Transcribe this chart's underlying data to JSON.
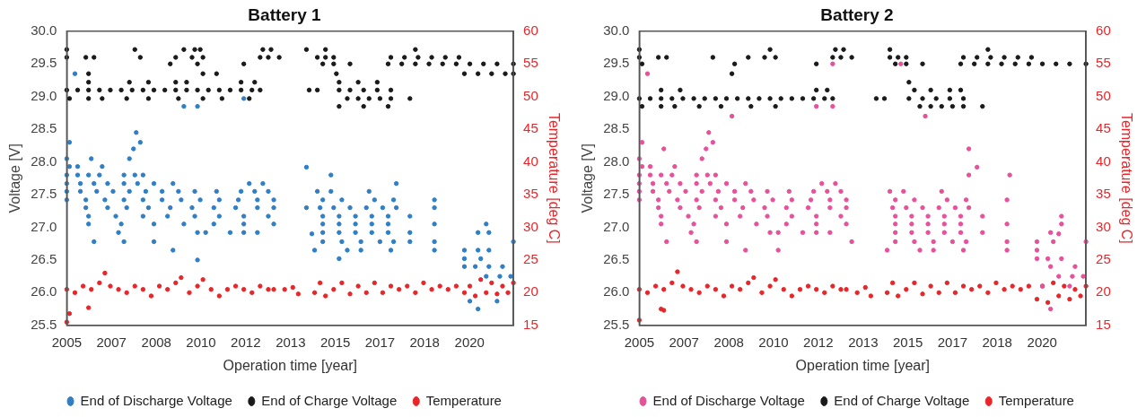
{
  "chart_data": [
    {
      "type": "scatter",
      "title": "Battery 1",
      "xlabel": "Operation time [year]",
      "ylabel": "Voltage [V]",
      "y2label": "Temperature [deg C]",
      "legend": "bottom",
      "marker": "circle",
      "grid": false,
      "xlim": [
        2005.1,
        2021.5
      ],
      "xticks": [
        {
          "value": 2005.1,
          "label": "2005"
        },
        {
          "value": 2006.74,
          "label": "2007"
        },
        {
          "value": 2008.39,
          "label": "2008"
        },
        {
          "value": 2010.03,
          "label": "2010"
        },
        {
          "value": 2011.67,
          "label": "2012"
        },
        {
          "value": 2013.32,
          "label": "2013"
        },
        {
          "value": 2014.96,
          "label": "2015"
        },
        {
          "value": 2016.6,
          "label": "2017"
        },
        {
          "value": 2018.24,
          "label": "2018"
        },
        {
          "value": 2019.89,
          "label": "2020"
        }
      ],
      "ylim": [
        25.5,
        30
      ],
      "yticks": [
        {
          "value": 25.5,
          "label": "25.5"
        },
        {
          "value": 26,
          "label": "26.0"
        },
        {
          "value": 26.5,
          "label": "26.5"
        },
        {
          "value": 27,
          "label": "27.0"
        },
        {
          "value": 27.5,
          "label": "27.5"
        },
        {
          "value": 28,
          "label": "28.0"
        },
        {
          "value": 28.5,
          "label": "28.5"
        },
        {
          "value": 29,
          "label": "29.0"
        },
        {
          "value": 29.5,
          "label": "29.5"
        },
        {
          "value": 30,
          "label": "30.0"
        }
      ],
      "y2lim": [
        15,
        60
      ],
      "y2ticks": [
        15,
        20,
        25,
        30,
        35,
        40,
        45,
        50,
        55,
        60
      ],
      "series": [
        {
          "name": "End of Discharge Voltage",
          "color": "#2e7fc6",
          "x": [
            2005.1,
            2005.2,
            2005.2,
            2005.5,
            2006.0,
            2006.4,
            2005.4,
            2005.1,
            2005.5,
            2005.9,
            2006.3,
            2007.2,
            2007.6,
            2007.9,
            2005.1,
            2005.6,
            2006.1,
            2006.6,
            2007.2,
            2007.7,
            2008.3,
            2009.0,
            2011.8,
            2012.3,
            2005.1,
            2005.6,
            2006.2,
            2006.8,
            2007.4,
            2008.0,
            2008.6,
            2009.2,
            2009.8,
            2010.6,
            2011.5,
            2012.0,
            2012.5,
            2005.1,
            2005.8,
            2006.5,
            2007.2,
            2007.9,
            2008.6,
            2009.3,
            2010.0,
            2010.7,
            2011.4,
            2012.1,
            2012.7,
            2005.8,
            2006.6,
            2007.3,
            2008.1,
            2008.9,
            2009.7,
            2010.5,
            2011.3,
            2012.1,
            2012.7,
            2005.9,
            2006.9,
            2007.9,
            2008.8,
            2009.8,
            2010.7,
            2011.6,
            2012.5,
            2005.9,
            2007.1,
            2008.3,
            2009.4,
            2010.5,
            2011.6,
            2012.7,
            2007.0,
            2009.9,
            2010.2,
            2011.1,
            2011.6,
            2012.1,
            2007.4,
            2007.55,
            2007.65,
            2007.8,
            2009.9,
            2009.0,
            2006.1,
            2007.2,
            2008.3,
            2009.4,
            2009.9,
            2011.6,
            2013.9,
            2013.9,
            2014.1,
            2014.3,
            2014.8,
            2016.2,
            2014.5,
            2015.2,
            2016.4,
            2017.1,
            2014.4,
            2014.9,
            2015.5,
            2016.1,
            2016.7,
            2017.2,
            2014.5,
            2015.1,
            2015.7,
            2016.3,
            2016.9,
            2014.5,
            2015.1,
            2015.7,
            2016.3,
            2016.9,
            2014.5,
            2015.1,
            2015.7,
            2016.3,
            2016.9,
            2014.5,
            2015.2,
            2015.9,
            2016.6,
            2017.1,
            2014.2,
            2015.4,
            2015.9,
            2017.0,
            2015.1,
            2014.8,
            2017.2,
            2017.7,
            2017.7,
            2017.7,
            2018.6,
            2018.6,
            2018.6,
            2018.6,
            2018.6,
            2019.7,
            2020.1,
            2020.6,
            2021.1,
            2019.7,
            2020.3,
            2019.7,
            2020.2,
            2020.6,
            2020.2,
            2020.6,
            2020.5,
            2020.5,
            2021.0,
            2021.4,
            2019.9,
            2020.9,
            2020.2,
            2021.5
          ],
          "values": [
            28.05,
            28.3,
            27.93,
            27.93,
            28.05,
            27.93,
            29.35,
            27.8,
            27.8,
            27.8,
            27.8,
            27.8,
            27.8,
            27.8,
            27.67,
            27.67,
            27.67,
            27.67,
            27.67,
            27.67,
            27.67,
            27.67,
            27.67,
            27.67,
            27.55,
            27.55,
            27.55,
            27.55,
            27.55,
            27.55,
            27.55,
            27.55,
            27.55,
            27.55,
            27.55,
            27.55,
            27.55,
            27.42,
            27.42,
            27.42,
            27.42,
            27.42,
            27.42,
            27.42,
            27.42,
            27.42,
            27.42,
            27.42,
            27.42,
            27.3,
            27.3,
            27.3,
            27.3,
            27.3,
            27.3,
            27.3,
            27.3,
            27.3,
            27.3,
            27.17,
            27.17,
            27.17,
            27.17,
            27.17,
            27.17,
            27.17,
            27.17,
            27.05,
            27.05,
            27.05,
            27.05,
            27.05,
            27.05,
            27.05,
            26.92,
            26.92,
            26.92,
            26.92,
            26.92,
            26.92,
            28.05,
            28.2,
            28.45,
            28.3,
            26.5,
            26.65,
            26.78,
            26.78,
            26.78,
            28.85,
            28.85,
            28.97,
            27.92,
            27.3,
            26.9,
            27.55,
            27.55,
            27.55,
            27.42,
            27.42,
            27.42,
            27.42,
            27.3,
            27.3,
            27.3,
            27.3,
            27.3,
            27.3,
            27.17,
            27.17,
            27.17,
            27.17,
            27.17,
            27.05,
            27.05,
            27.05,
            27.05,
            27.05,
            26.92,
            26.92,
            26.92,
            26.92,
            26.92,
            26.78,
            26.78,
            26.78,
            26.78,
            26.78,
            26.65,
            26.65,
            26.65,
            26.65,
            26.52,
            27.8,
            27.67,
            27.17,
            26.92,
            26.78,
            27.42,
            27.3,
            27.05,
            26.78,
            26.65,
            26.4,
            26.4,
            26.4,
            26.4,
            26.52,
            26.52,
            26.65,
            26.65,
            26.65,
            26.92,
            26.92,
            27.05,
            26.25,
            26.25,
            26.25,
            25.87,
            25.87,
            25.75,
            26.78
          ]
        },
        {
          "name": "End of Charge Voltage",
          "color": "#1a1a1a",
          "x": [
            2005.1,
            2005.5,
            2005.9,
            2006.3,
            2006.7,
            2007.1,
            2007.5,
            2007.9,
            2008.3,
            2008.7,
            2009.1,
            2009.5,
            2009.9,
            2010.3,
            2010.7,
            2011.1,
            2011.5,
            2011.9,
            2012.2,
            2005.1,
            2005.8,
            2006.1,
            2007.8,
            2009.1,
            2009.7,
            2010.1,
            2012.2,
            2012.5,
            2012.9,
            2014.3,
            2014.6,
            2014.9,
            2005.1,
            2007.6,
            2009.4,
            2009.8,
            2010.0,
            2012.3,
            2012.6,
            2013.9,
            2014.6,
            2008.9,
            2009.9,
            2011.6,
            2014.5,
            2014.9,
            2015.5,
            2005.2,
            2005.9,
            2006.4,
            2007.3,
            2008.1,
            2009.2,
            2010.1,
            2010.8,
            2011.8,
            2017.7,
            2015.4,
            2015.8,
            2016.2,
            2016.6,
            2017.0,
            2005.9,
            2007.4,
            2008.1,
            2009.1,
            2009.5,
            2011.5,
            2012.0,
            2015.1,
            2015.8,
            2016.5,
            2005.9,
            2010.1,
            2010.6,
            2015.0,
            2014.0,
            2014.3,
            2015.1,
            2015.5,
            2016.0,
            2016.5,
            2017.0,
            2015.1,
            2016.0,
            2016.9,
            2016.9,
            2017.4,
            2017.9,
            2018.4,
            2018.9,
            2019.4,
            2019.9,
            2020.4,
            2020.9,
            2021.5,
            2017.0,
            2017.5,
            2018.0,
            2018.5,
            2019.0,
            2019.5,
            2019.7,
            2020.2,
            2020.7,
            2021.2,
            2021.5,
            2017.9
          ],
          "values": [
            29.1,
            29.1,
            29.1,
            29.1,
            29.1,
            29.1,
            29.1,
            29.1,
            29.1,
            29.1,
            29.1,
            29.1,
            29.1,
            29.1,
            29.1,
            29.1,
            29.1,
            29.1,
            29.1,
            29.6,
            29.6,
            29.6,
            29.6,
            29.6,
            29.6,
            29.6,
            29.6,
            29.6,
            29.6,
            29.6,
            29.6,
            29.6,
            29.72,
            29.72,
            29.72,
            29.72,
            29.72,
            29.72,
            29.72,
            29.72,
            29.72,
            29.5,
            29.5,
            29.5,
            29.5,
            29.5,
            29.5,
            28.97,
            28.97,
            28.97,
            28.97,
            28.97,
            28.97,
            28.97,
            28.97,
            28.97,
            28.97,
            28.97,
            28.97,
            28.97,
            28.97,
            28.97,
            29.22,
            29.22,
            29.22,
            29.22,
            29.22,
            29.22,
            29.22,
            29.22,
            29.22,
            29.22,
            29.35,
            29.35,
            29.35,
            29.35,
            29.1,
            29.1,
            29.1,
            29.1,
            29.1,
            29.1,
            29.1,
            28.85,
            28.85,
            28.85,
            29.5,
            29.5,
            29.5,
            29.5,
            29.5,
            29.5,
            29.5,
            29.5,
            29.5,
            29.5,
            29.6,
            29.6,
            29.6,
            29.6,
            29.6,
            29.6,
            29.35,
            29.35,
            29.35,
            29.35,
            29.35,
            29.72
          ]
        },
        {
          "name": "Temperature",
          "color": "#e8262a",
          "axis": "y2",
          "x": [
            2005.1,
            2005.2,
            2005.9,
            2005.1,
            2005.4,
            2005.7,
            2006.0,
            2006.3,
            2006.5,
            2006.7,
            2007.0,
            2007.3,
            2007.6,
            2007.9,
            2008.2,
            2008.5,
            2008.8,
            2009.1,
            2009.3,
            2009.6,
            2009.9,
            2010.1,
            2010.4,
            2010.7,
            2011.0,
            2011.3,
            2011.6,
            2011.9,
            2012.2,
            2012.5,
            2012.7,
            2013.1,
            2013.4,
            2013.6,
            2014.2,
            2014.4,
            2014.6,
            2014.9,
            2015.2,
            2015.5,
            2015.8,
            2016.1,
            2016.4,
            2016.7,
            2017.0,
            2017.3,
            2017.6,
            2017.9,
            2018.2,
            2018.5,
            2018.8,
            2019.1,
            2019.4,
            2019.7,
            2019.9,
            2020.1,
            2020.3,
            2020.5,
            2020.7,
            2020.9,
            2021.1,
            2021.3,
            2021.5
          ],
          "values": [
            15.5,
            16.8,
            17.7,
            20.5,
            20,
            21,
            20.5,
            21.5,
            23,
            21,
            20.5,
            20,
            21,
            20.5,
            19.5,
            21,
            20.5,
            21.5,
            22.3,
            20,
            21,
            22,
            20.5,
            19.5,
            20.5,
            21,
            20.5,
            20,
            21,
            20.5,
            20.5,
            20.5,
            20.8,
            19.8,
            20,
            21.5,
            19.5,
            20.5,
            21.5,
            19.8,
            21,
            20,
            21.5,
            20,
            21,
            20.5,
            21,
            20,
            21.5,
            20.5,
            21,
            20.5,
            21,
            20,
            21,
            19.5,
            22,
            20,
            21.5,
            19.8,
            21,
            20,
            21.5
          ]
        }
      ]
    },
    {
      "type": "scatter",
      "title": "Battery 2",
      "xlabel": "Operation time [year]",
      "ylabel": "Voltage [V]",
      "y2label": "Temperature [deg C]",
      "legend": "bottom",
      "marker": "circle",
      "grid": false,
      "xlim": [
        2005.1,
        2021.5
      ],
      "xticks": [
        {
          "value": 2005.1,
          "label": "2005"
        },
        {
          "value": 2006.74,
          "label": "2007"
        },
        {
          "value": 2008.39,
          "label": "2008"
        },
        {
          "value": 2010.03,
          "label": "2010"
        },
        {
          "value": 2011.67,
          "label": "2012"
        },
        {
          "value": 2013.32,
          "label": "2013"
        },
        {
          "value": 2014.96,
          "label": "2015"
        },
        {
          "value": 2016.6,
          "label": "2017"
        },
        {
          "value": 2018.24,
          "label": "2018"
        },
        {
          "value": 2019.89,
          "label": "2020"
        }
      ],
      "ylim": [
        25.5,
        30
      ],
      "yticks": [
        {
          "value": 25.5,
          "label": "25.5"
        },
        {
          "value": 26,
          "label": "26.0"
        },
        {
          "value": 26.5,
          "label": "26.5"
        },
        {
          "value": 27,
          "label": "27.0"
        },
        {
          "value": 27.5,
          "label": "27.5"
        },
        {
          "value": 28,
          "label": "28.0"
        },
        {
          "value": 28.5,
          "label": "28.5"
        },
        {
          "value": 29,
          "label": "29.0"
        },
        {
          "value": 29.5,
          "label": "29.5"
        },
        {
          "value": 30,
          "label": "30.0"
        }
      ],
      "y2lim": [
        15,
        60
      ],
      "y2ticks": [
        15,
        20,
        25,
        30,
        35,
        40,
        45,
        50,
        55,
        60
      ],
      "series": [
        {
          "name": "End of Discharge Voltage",
          "color": "#e8509a",
          "x": [
            2005.1,
            2005.2,
            2005.2,
            2005.5,
            2006.0,
            2006.4,
            2005.4,
            2005.1,
            2005.5,
            2005.9,
            2006.3,
            2007.2,
            2007.6,
            2007.9,
            2005.1,
            2005.6,
            2006.1,
            2006.6,
            2007.2,
            2007.7,
            2008.3,
            2009.0,
            2011.8,
            2012.3,
            2005.1,
            2005.6,
            2006.2,
            2006.8,
            2007.4,
            2008.0,
            2008.6,
            2009.2,
            2009.8,
            2010.6,
            2011.5,
            2012.0,
            2012.5,
            2005.1,
            2005.8,
            2006.5,
            2007.2,
            2007.9,
            2008.6,
            2009.3,
            2010.0,
            2010.7,
            2011.4,
            2012.1,
            2012.7,
            2005.8,
            2006.6,
            2007.3,
            2008.1,
            2008.9,
            2009.7,
            2010.5,
            2011.3,
            2012.1,
            2012.7,
            2005.9,
            2006.9,
            2007.9,
            2008.8,
            2009.8,
            2010.7,
            2011.6,
            2012.5,
            2005.9,
            2007.1,
            2008.3,
            2009.4,
            2010.5,
            2011.6,
            2012.7,
            2007.0,
            2009.9,
            2010.2,
            2011.1,
            2011.6,
            2012.1,
            2007.4,
            2007.55,
            2007.65,
            2007.8,
            2010.2,
            2009.0,
            2006.1,
            2007.2,
            2008.3,
            2008.5,
            2011.6,
            2012.2,
            2012.2,
            2014.7,
            2015.6,
            2014.3,
            2014.8,
            2016.2,
            2014.5,
            2015.2,
            2016.4,
            2017.1,
            2014.4,
            2014.9,
            2015.5,
            2016.1,
            2016.7,
            2017.2,
            2014.5,
            2015.1,
            2015.7,
            2016.3,
            2016.9,
            2014.5,
            2015.1,
            2015.7,
            2016.3,
            2016.9,
            2014.5,
            2015.1,
            2015.7,
            2016.3,
            2016.9,
            2014.5,
            2015.2,
            2015.9,
            2016.6,
            2017.1,
            2014.2,
            2015.4,
            2015.9,
            2017.0,
            2012.9,
            2017.2,
            2017.2,
            2017.5,
            2017.7,
            2017.7,
            2018.6,
            2018.7,
            2018.6,
            2018.6,
            2018.6,
            2019.7,
            2020.1,
            2020.6,
            2021.1,
            2019.7,
            2020.3,
            2019.7,
            2020.2,
            2020.6,
            2020.2,
            2020.6,
            2020.5,
            2020.5,
            2021.0,
            2021.4,
            2019.9,
            2020.9,
            2020.2,
            2021.5
          ],
          "values": [
            28.05,
            28.3,
            27.93,
            27.93,
            28.2,
            27.93,
            29.35,
            27.8,
            27.8,
            27.8,
            27.8,
            27.8,
            27.8,
            27.8,
            27.67,
            27.67,
            27.67,
            27.67,
            27.67,
            27.67,
            27.67,
            27.67,
            27.67,
            27.67,
            27.55,
            27.55,
            27.55,
            27.55,
            27.55,
            27.55,
            27.55,
            27.55,
            27.55,
            27.55,
            27.55,
            27.55,
            27.55,
            27.42,
            27.42,
            27.42,
            27.42,
            27.42,
            27.42,
            27.42,
            27.42,
            27.42,
            27.42,
            27.42,
            27.42,
            27.3,
            27.3,
            27.3,
            27.3,
            27.3,
            27.3,
            27.3,
            27.3,
            27.3,
            27.3,
            27.17,
            27.17,
            27.17,
            27.17,
            27.17,
            27.17,
            27.17,
            27.17,
            27.05,
            27.05,
            27.05,
            27.05,
            27.05,
            27.05,
            27.05,
            26.92,
            26.92,
            26.92,
            26.92,
            26.92,
            26.92,
            28.05,
            28.2,
            28.45,
            28.3,
            26.65,
            26.65,
            26.78,
            26.78,
            26.78,
            28.7,
            28.85,
            28.85,
            29.5,
            29.5,
            28.7,
            27.55,
            27.55,
            27.55,
            27.42,
            27.42,
            27.42,
            27.42,
            27.3,
            27.3,
            27.3,
            27.3,
            27.3,
            27.3,
            27.17,
            27.17,
            27.17,
            27.17,
            27.17,
            27.05,
            27.05,
            27.05,
            27.05,
            27.05,
            26.92,
            26.92,
            26.92,
            26.92,
            26.92,
            26.78,
            26.78,
            26.78,
            26.78,
            26.78,
            26.65,
            26.65,
            26.65,
            26.65,
            26.78,
            28.2,
            27.8,
            27.92,
            27.17,
            26.92,
            27.42,
            27.8,
            27.05,
            26.78,
            26.65,
            26.52,
            26.52,
            26.52,
            26.4,
            26.65,
            26.78,
            26.78,
            26.92,
            27.05,
            26.4,
            27.17,
            26.9,
            26.25,
            26.25,
            26.25,
            26.1,
            26.1,
            25.75,
            26.78
          ]
        },
        {
          "name": "End of Charge Voltage",
          "color": "#1a1a1a",
          "x": [
            2005.1,
            2005.5,
            2005.9,
            2006.3,
            2006.7,
            2007.1,
            2007.5,
            2007.9,
            2008.3,
            2008.7,
            2009.1,
            2009.5,
            2009.9,
            2010.3,
            2010.7,
            2011.1,
            2011.5,
            2011.9,
            2012.2,
            2005.1,
            2005.8,
            2006.1,
            2007.8,
            2009.1,
            2009.7,
            2010.1,
            2012.2,
            2012.5,
            2012.9,
            2014.3,
            2014.6,
            2014.9,
            2005.1,
            2009.9,
            2012.3,
            2012.6,
            2014.3,
            2008.6,
            2005.2,
            2011.6,
            2014.5,
            2014.9,
            2015.5,
            2005.2,
            2005.9,
            2006.4,
            2007.3,
            2008.1,
            2009.2,
            2010.1,
            2015.4,
            2015.8,
            2016.2,
            2016.6,
            2017.0,
            2017.7,
            2005.9,
            2006.6,
            2011.6,
            2012.0,
            2015.2,
            2015.8,
            2016.5,
            2016.9,
            2008.5,
            2015.0,
            2013.8,
            2014.1,
            2015.0,
            2015.5,
            2016.0,
            2016.5,
            2017.0,
            2016.9,
            2017.4,
            2017.9,
            2018.4,
            2018.9,
            2019.4,
            2019.9,
            2020.4,
            2020.9,
            2021.5,
            2017.0,
            2017.5,
            2018.0,
            2018.5,
            2019.0,
            2019.5,
            2017.9
          ],
          "values": [
            28.97,
            28.97,
            28.97,
            28.97,
            28.97,
            28.97,
            28.97,
            28.97,
            28.97,
            28.97,
            28.97,
            28.97,
            28.97,
            28.97,
            28.97,
            28.97,
            28.97,
            28.97,
            28.97,
            29.6,
            29.6,
            29.6,
            29.6,
            29.6,
            29.6,
            29.6,
            29.6,
            29.6,
            29.6,
            29.6,
            29.6,
            29.6,
            29.72,
            29.72,
            29.72,
            29.72,
            29.72,
            29.5,
            29.5,
            29.5,
            29.5,
            29.5,
            29.5,
            28.85,
            28.85,
            28.85,
            28.85,
            28.85,
            28.85,
            28.85,
            28.85,
            28.85,
            28.85,
            28.85,
            28.85,
            28.85,
            29.1,
            29.1,
            29.1,
            29.1,
            29.1,
            29.1,
            29.1,
            29.1,
            29.35,
            29.22,
            28.97,
            28.97,
            28.97,
            28.97,
            28.97,
            28.97,
            28.97,
            29.5,
            29.5,
            29.5,
            29.5,
            29.5,
            29.5,
            29.5,
            29.5,
            29.5,
            29.5,
            29.6,
            29.6,
            29.6,
            29.6,
            29.6,
            29.6,
            29.72
          ]
        },
        {
          "name": "Temperature",
          "color": "#e8262a",
          "axis": "y2",
          "x": [
            2005.1,
            2005.9,
            2006.0,
            2005.1,
            2005.4,
            2005.7,
            2006.0,
            2006.3,
            2006.5,
            2006.7,
            2007.0,
            2007.3,
            2007.6,
            2007.9,
            2008.2,
            2008.5,
            2008.8,
            2009.1,
            2009.3,
            2009.6,
            2009.9,
            2010.1,
            2010.4,
            2010.7,
            2011.0,
            2011.3,
            2011.6,
            2011.9,
            2012.2,
            2012.5,
            2012.7,
            2013.1,
            2013.4,
            2013.6,
            2014.2,
            2014.4,
            2014.6,
            2014.9,
            2015.2,
            2015.5,
            2015.8,
            2016.1,
            2016.4,
            2016.7,
            2017.0,
            2017.3,
            2017.6,
            2017.9,
            2018.2,
            2018.5,
            2018.8,
            2019.1,
            2019.4,
            2019.7,
            2019.9,
            2020.1,
            2020.3,
            2020.5,
            2020.7,
            2020.9,
            2021.1,
            2021.3,
            2021.5
          ],
          "values": [
            15.8,
            17.5,
            17.3,
            20.5,
            20,
            21,
            20.5,
            21.5,
            23.2,
            21,
            20.5,
            20,
            21,
            20.5,
            19.5,
            21,
            20.5,
            21.5,
            22.3,
            20,
            21,
            22,
            20.5,
            19.5,
            20.5,
            21,
            20.5,
            20,
            21,
            20.5,
            20.5,
            20,
            20.8,
            19.5,
            20,
            21.5,
            19.5,
            20.5,
            21.5,
            19.8,
            21,
            20,
            21.5,
            20,
            21,
            20.5,
            21,
            20,
            21.5,
            20.5,
            21,
            20.5,
            21,
            19,
            21,
            18.5,
            21.5,
            19.5,
            21,
            19,
            20.5,
            19.5,
            21
          ]
        }
      ]
    }
  ]
}
